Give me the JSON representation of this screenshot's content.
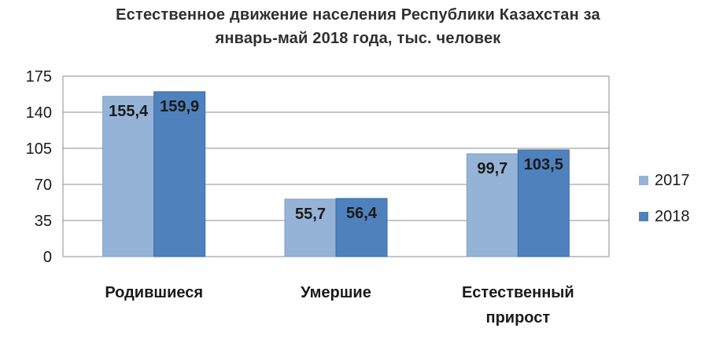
{
  "chart_data": {
    "type": "bar",
    "title_lines": [
      "Естественное движение населения Республики Казахстан за",
      "январь-май 2018 года, тыс. человек"
    ],
    "categories": [
      [
        "Родившиеся"
      ],
      [
        "Умершие"
      ],
      [
        "Естественный",
        "прирост"
      ]
    ],
    "series": [
      {
        "name": "2017",
        "values": [
          155.4,
          55.7,
          99.7
        ],
        "labels": [
          "155,4",
          "55,7",
          "99,7"
        ],
        "color": "#95b3d7"
      },
      {
        "name": "2018",
        "values": [
          159.9,
          56.4,
          103.5
        ],
        "labels": [
          "159,9",
          "56,4",
          "103,5"
        ],
        "color": "#4f81bd"
      }
    ],
    "ylim": [
      0,
      175
    ],
    "yticks": [
      0,
      35,
      70,
      105,
      140,
      175
    ],
    "grid": true,
    "legend_position": "right"
  }
}
